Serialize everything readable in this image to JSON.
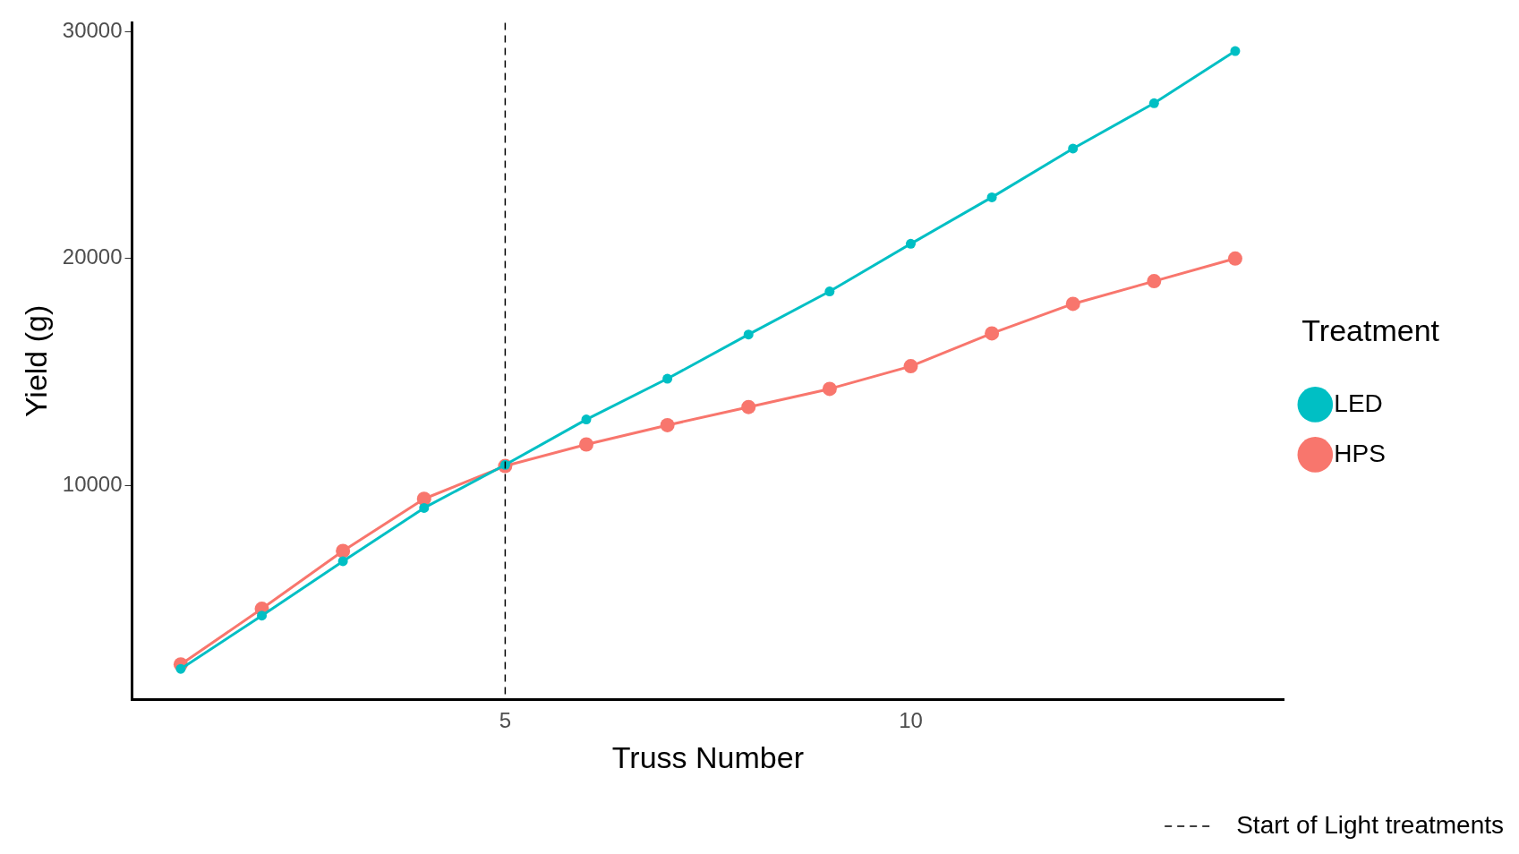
{
  "chart_data": {
    "type": "line",
    "xlabel": "Truss Number",
    "ylabel": "Yield (g)",
    "legend_title": "Treatment",
    "x": [
      1,
      2,
      3,
      4,
      5,
      6,
      7,
      8,
      9,
      10,
      11,
      12,
      13,
      14
    ],
    "series": [
      {
        "name": "HPS",
        "color": "#f8766d",
        "values": [
          2100,
          4550,
          7100,
          9400,
          10850,
          11800,
          12650,
          13450,
          14250,
          15250,
          16700,
          18000,
          19000,
          20000
        ]
      },
      {
        "name": "LED",
        "color": "#00bfc4",
        "values": [
          1900,
          4250,
          6650,
          9000,
          10900,
          12900,
          14700,
          16650,
          18550,
          20650,
          22700,
          24850,
          26850,
          29150
        ]
      }
    ],
    "xlim": [
      0.4,
      14.6
    ],
    "xticks": [
      5,
      10
    ],
    "ylim": [
      550,
      30400
    ],
    "yticks": [
      10000,
      20000,
      30000
    ],
    "ref_lines": [
      {
        "axis": "x",
        "value": 5,
        "label": "Start of Light treatments",
        "color": "#000000",
        "line_style": "dashed"
      }
    ],
    "grid": false,
    "legend": "right",
    "marker": "circle",
    "line_style": "solid"
  }
}
